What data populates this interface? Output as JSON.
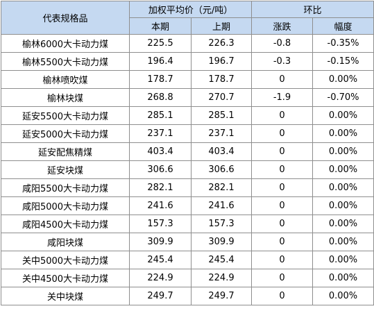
{
  "table": {
    "headers": {
      "name": "代表规格品",
      "price_group": "加权平均价（元/吨）",
      "change_group": "环比",
      "current": "本期",
      "previous": "上期",
      "change": "涨跌",
      "pct": "幅度"
    },
    "rows": [
      {
        "name": "榆林6000大卡动力煤",
        "current": "225.5",
        "previous": "226.3",
        "change": "-0.8",
        "pct": "-0.35%"
      },
      {
        "name": "榆林5500大卡动力煤",
        "current": "196.4",
        "previous": "196.7",
        "change": "-0.3",
        "pct": "-0.15%"
      },
      {
        "name": "榆林喷吹煤",
        "current": "178.7",
        "previous": "178.7",
        "change": "0",
        "pct": "0.00%"
      },
      {
        "name": "榆林块煤",
        "current": "268.8",
        "previous": "270.7",
        "change": "-1.9",
        "pct": "-0.70%"
      },
      {
        "name": "延安5500大卡动力煤",
        "current": "285.1",
        "previous": "285.1",
        "change": "0",
        "pct": "0.00%"
      },
      {
        "name": "延安5000大卡动力煤",
        "current": "237.1",
        "previous": "237.1",
        "change": "0",
        "pct": "0.00%"
      },
      {
        "name": "延安配焦精煤",
        "current": "403.4",
        "previous": "403.4",
        "change": "0",
        "pct": "0.00%"
      },
      {
        "name": "延安块煤",
        "current": "306.6",
        "previous": "306.6",
        "change": "0",
        "pct": "0.00%"
      },
      {
        "name": "咸阳5500大卡动力煤",
        "current": "282.1",
        "previous": "282.1",
        "change": "0",
        "pct": "0.00%"
      },
      {
        "name": "咸阳5000大卡动力煤",
        "current": "241.6",
        "previous": "241.6",
        "change": "0",
        "pct": "0.00%"
      },
      {
        "name": "咸阳4500大卡动力煤",
        "current": "157.3",
        "previous": "157.3",
        "change": "0",
        "pct": "0.00%"
      },
      {
        "name": "咸阳块煤",
        "current": "309.9",
        "previous": "309.9",
        "change": "0",
        "pct": "0.00%"
      },
      {
        "name": "关中5000大卡动力煤",
        "current": "245.4",
        "previous": "245.4",
        "change": "0",
        "pct": "0.00%"
      },
      {
        "name": "关中4500大卡动力煤",
        "current": "224.9",
        "previous": "224.9",
        "change": "0",
        "pct": "0.00%"
      },
      {
        "name": "关中块煤",
        "current": "249.7",
        "previous": "249.7",
        "change": "0",
        "pct": "0.00%"
      }
    ]
  }
}
